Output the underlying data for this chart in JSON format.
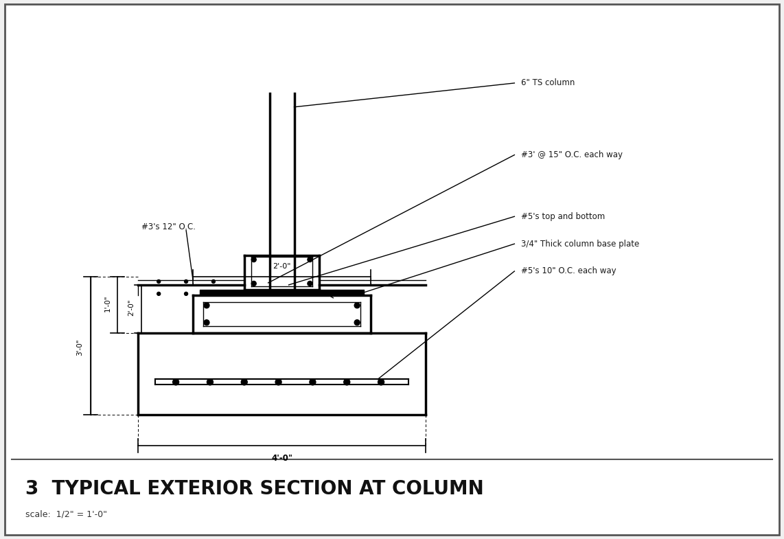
{
  "background_color": "#f0f0f0",
  "drawing_bg": "#ffffff",
  "line_color": "#1a1a1a",
  "title": "3  TYPICAL EXTERIOR SECTION AT COLUMN",
  "scale_text": "scale:  1/2\" = 1'-0\"",
  "labels": {
    "ts_column": "6\" TS column",
    "rebar_stirrup": "#3' @ 15\" O.C. each way",
    "top_bottom": "#5's top and bottom",
    "base_plate": "3/4\" Thick column base plate",
    "oc_each_way": "#5's 10\" O.C. each way",
    "hash3_oc": "#3's 12\" O.C.",
    "dim_3ft": "3'-0\"",
    "dim_1ft": "1'-0\"",
    "dim_2ft": "2'-0\"",
    "dim_2ft_horiz": "2'-0\"",
    "dim_4ft": "4'-0\""
  },
  "colors": {
    "main_line": "#000000",
    "heavy_line": "#000000",
    "dim_line": "#000000",
    "fill_dark": "#333333",
    "fill_medium": "#888888"
  }
}
